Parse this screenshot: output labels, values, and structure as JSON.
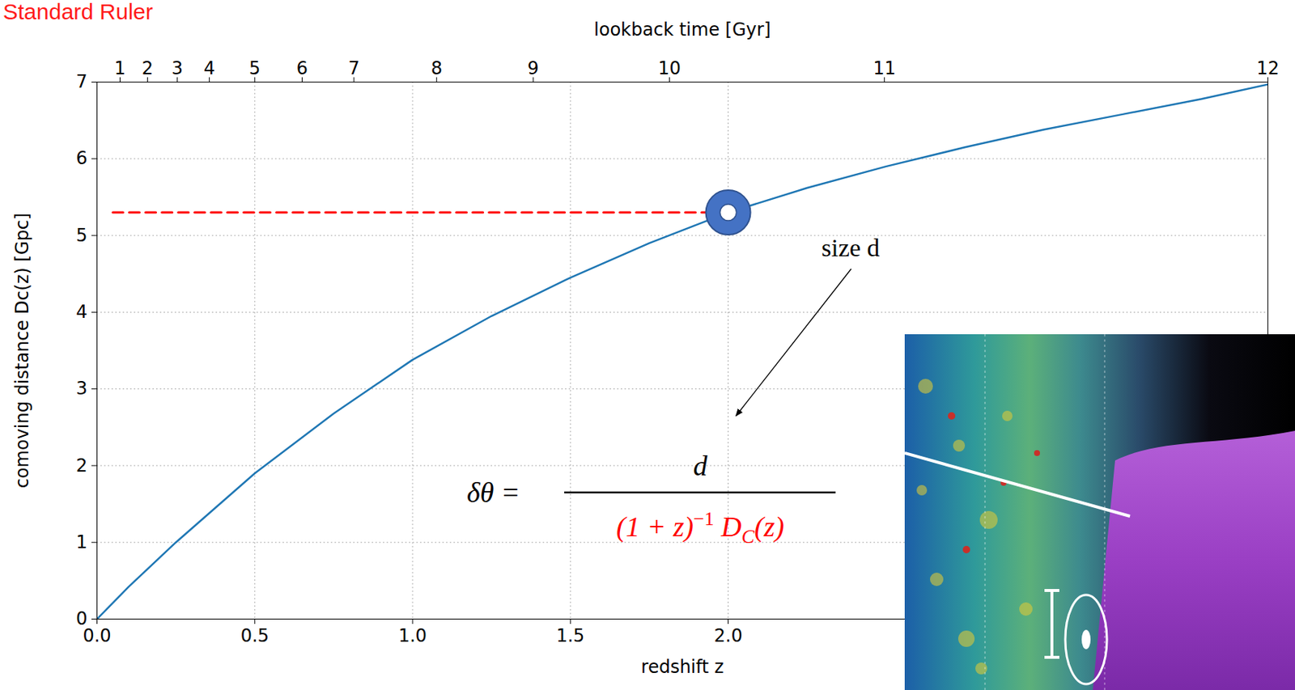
{
  "chart_data": {
    "type": "line",
    "title": "Standard Ruler",
    "x_label": "redshift z",
    "y_label": "comoving distance Dc(z) [Gpc]",
    "x": [
      0,
      0.1,
      0.25,
      0.5,
      0.75,
      1.0,
      1.25,
      1.5,
      1.75,
      2.0,
      2.25,
      2.5,
      2.75,
      3.0,
      3.25,
      3.5,
      3.71
    ],
    "values": [
      0,
      0.42,
      1.0,
      1.9,
      2.68,
      3.38,
      3.95,
      4.45,
      4.9,
      5.3,
      5.62,
      5.9,
      6.15,
      6.38,
      6.58,
      6.78,
      6.97
    ],
    "color": "#1f77b4",
    "xlim": [
      0,
      3.71
    ],
    "ylim": [
      0,
      7
    ],
    "xticks": [
      {
        "value": 0,
        "label": "0.0"
      },
      {
        "value": 0.5,
        "label": "0.5"
      },
      {
        "value": 1,
        "label": "1.0"
      },
      {
        "value": 1.5,
        "label": "1.5"
      },
      {
        "value": 2,
        "label": "2.0"
      }
    ],
    "yticks": [
      0,
      1,
      2,
      3,
      4,
      5,
      6,
      7
    ],
    "grid": true,
    "top_axis": {
      "label": "lookback time [Gyr]",
      "ticks": [
        {
          "value": 0.073,
          "label": "1"
        },
        {
          "value": 0.16,
          "label": "2"
        },
        {
          "value": 0.254,
          "label": "3"
        },
        {
          "value": 0.356,
          "label": "4"
        },
        {
          "value": 0.5,
          "label": "5"
        },
        {
          "value": 0.65,
          "label": "6"
        },
        {
          "value": 0.814,
          "label": "7"
        },
        {
          "value": 1.076,
          "label": "8"
        },
        {
          "value": 1.382,
          "label": "9"
        },
        {
          "value": 1.814,
          "label": "10"
        },
        {
          "value": 2.495,
          "label": "11"
        },
        {
          "value": 3.71,
          "label": "12"
        }
      ]
    },
    "marked_point": {
      "x": 2.0,
      "y": 5.3,
      "color": "#4472c4",
      "marker": "ring"
    },
    "reference_line": {
      "x": [
        0.05,
        2.0
      ],
      "y": 5.3,
      "color": "#ff0000",
      "line_style": "dashed"
    },
    "point_label": "size d",
    "formula": {
      "lhs": "δθ =",
      "numerator": "d",
      "denominator": {
        "factor": "(1 + z)",
        "exponent": "−1",
        "symbol": "D",
        "subscript": "C",
        "argument": "(z)",
        "color": "#ff0000"
      }
    }
  }
}
